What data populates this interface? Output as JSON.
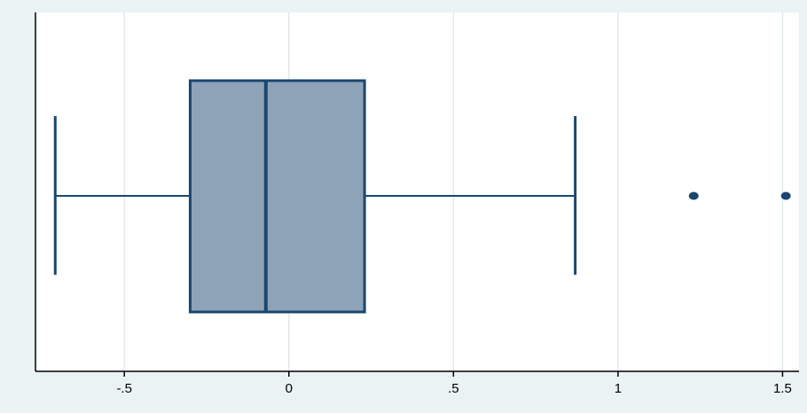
{
  "chart_data": {
    "type": "box",
    "orientation": "horizontal",
    "title": "",
    "xlabel": "",
    "ylabel": "",
    "xlim": [
      -0.77,
      1.55
    ],
    "ticks": [
      {
        "value": -0.5,
        "label": "-.5"
      },
      {
        "value": 0,
        "label": "0"
      },
      {
        "value": 0.5,
        "label": ".5"
      },
      {
        "value": 1,
        "label": "1"
      },
      {
        "value": 1.5,
        "label": "1.5"
      }
    ],
    "grid": true,
    "box": {
      "whisker_low": -0.71,
      "q1": -0.3,
      "median": -0.07,
      "q3": 0.23,
      "whisker_high": 0.87,
      "outliers": [
        1.23,
        1.51
      ]
    },
    "colors": {
      "background": "#eaf2f3",
      "plot_area": "#ffffff",
      "box_fill": "#8ea3b7",
      "box_stroke": "#1a476f",
      "grid": "#dfe9eb",
      "axis": "#000000"
    }
  }
}
